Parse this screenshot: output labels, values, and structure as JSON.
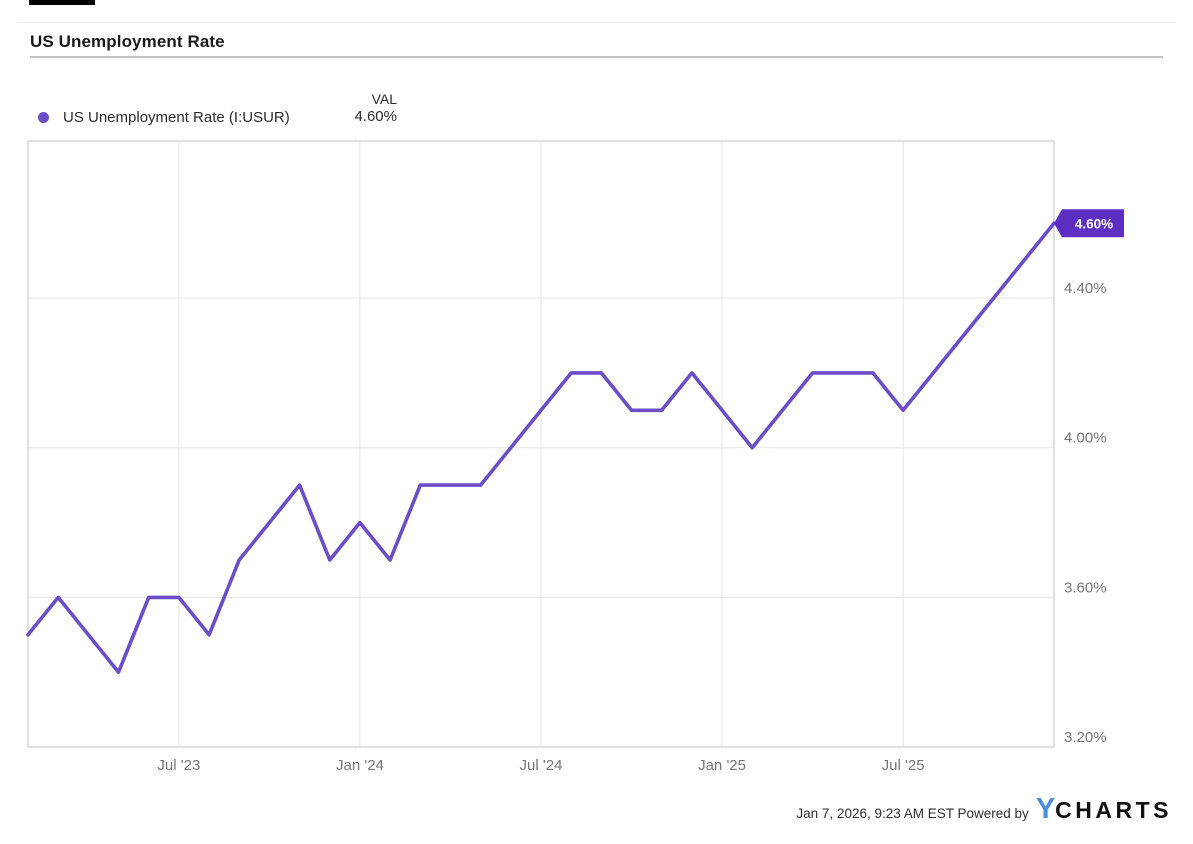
{
  "header": {
    "title": "US Unemployment Rate"
  },
  "legend": {
    "series_label": "US Unemployment Rate (I:USUR)",
    "val_header": "VAL",
    "val_value": "4.60%"
  },
  "footer": {
    "timestamp_powered": "Jan 7, 2026, 9:23 AM EST Powered by",
    "logo_y": "Y",
    "logo_charts": "CHARTS"
  },
  "colors": {
    "line": "#6A4DC7",
    "legend_dot": "#6A4DC7",
    "badge_bg": "#5C2EC2",
    "badge_text": "#FFFFFF",
    "gridline": "#E5E5E5",
    "plot_border": "#D6D6D6",
    "axis_label": "#757575",
    "logo_blue": "#4A90D9"
  },
  "chart_data": {
    "type": "line",
    "title": "US Unemployment Rate",
    "series_name": "US Unemployment Rate (I:USUR)",
    "grid": true,
    "legend_position": "top-left",
    "ylim": [
      3.2,
      4.82
    ],
    "x": [
      "Feb '23",
      "Mar '23",
      "Apr '23",
      "May '23",
      "Jun '23",
      "Jul '23",
      "Aug '23",
      "Sep '23",
      "Oct '23",
      "Nov '23",
      "Dec '23",
      "Jan '24",
      "Feb '24",
      "Mar '24",
      "Apr '24",
      "May '24",
      "Jun '24",
      "Jul '24",
      "Aug '24",
      "Sep '24",
      "Oct '24",
      "Nov '24",
      "Dec '24",
      "Jan '25",
      "Feb '25",
      "Mar '25",
      "Apr '25",
      "May '25",
      "Jun '25",
      "Jul '25",
      "Aug '25",
      "Sep '25",
      "Oct '25",
      "Nov '25",
      "Dec '25"
    ],
    "values": [
      3.5,
      3.6,
      3.5,
      3.4,
      3.6,
      3.6,
      3.5,
      3.7,
      3.8,
      3.9,
      3.7,
      3.8,
      3.7,
      3.9,
      3.9,
      3.9,
      4.0,
      4.1,
      4.2,
      4.2,
      4.1,
      4.1,
      4.2,
      4.1,
      4.0,
      4.1,
      4.2,
      4.2,
      4.2,
      4.1,
      4.2,
      4.3,
      4.4,
      4.5,
      4.6
    ],
    "x_ticks": [
      {
        "label": "Jul '23",
        "index": 5
      },
      {
        "label": "Jan '24",
        "index": 11
      },
      {
        "label": "Jul '24",
        "index": 17
      },
      {
        "label": "Jan '25",
        "index": 23
      },
      {
        "label": "Jul '25",
        "index": 29
      }
    ],
    "y_ticks": [
      {
        "label": "4.40%",
        "value": 4.4
      },
      {
        "label": "4.00%",
        "value": 4.0
      },
      {
        "label": "3.60%",
        "value": 3.6
      },
      {
        "label": "3.20%",
        "value": 3.2
      }
    ],
    "last_value_label": "4.60%"
  }
}
